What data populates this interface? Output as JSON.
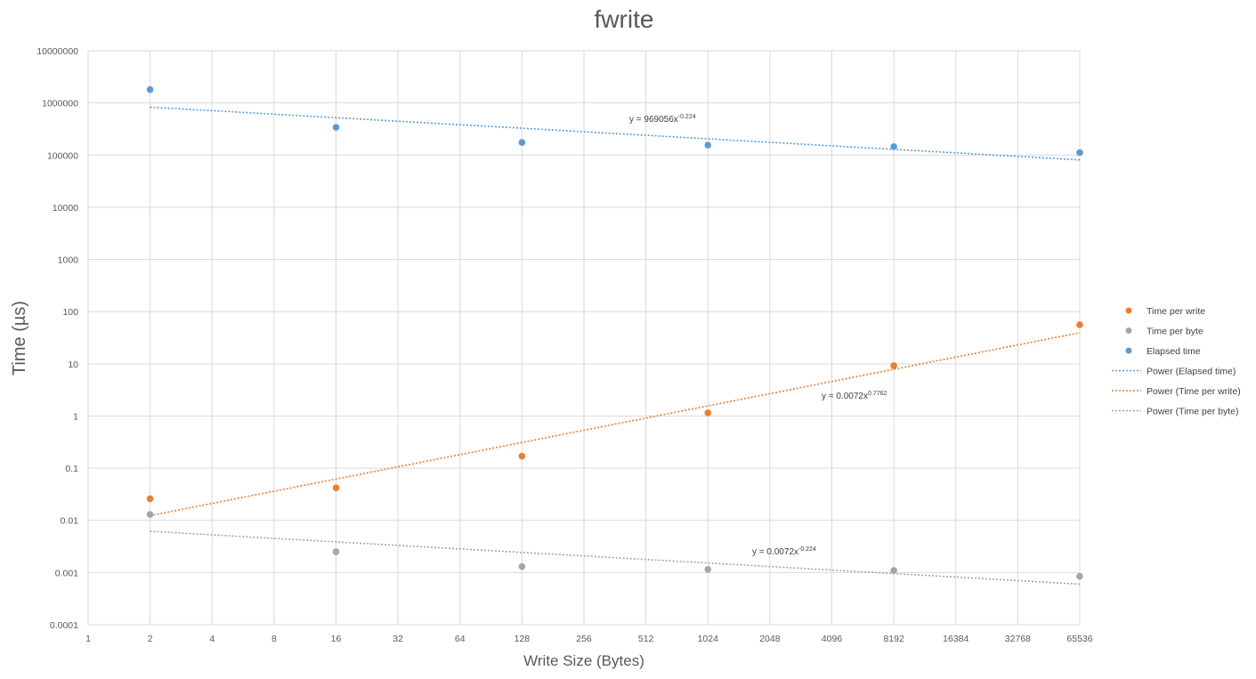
{
  "chart_data": {
    "type": "scatter",
    "title": "fwrite",
    "xlabel": "Write Size (Bytes)",
    "ylabel": "Time (µs)",
    "x_scale": "log2",
    "y_scale": "log10",
    "x_ticks": [
      "1",
      "2",
      "4",
      "8",
      "16",
      "32",
      "64",
      "128",
      "256",
      "512",
      "1024",
      "2048",
      "4096",
      "8192",
      "16384",
      "32768",
      "65536"
    ],
    "y_ticks": [
      "0.0001",
      "0.001",
      "0.01",
      "0.1",
      "1",
      "10",
      "100",
      "1000",
      "10000",
      "100000",
      "1000000",
      "10000000"
    ],
    "xlim": [
      1,
      65536
    ],
    "ylim": [
      0.0001,
      10000000
    ],
    "grid": true,
    "legend_position": "right",
    "series": [
      {
        "name": "Time per write",
        "color": "#ed7d31",
        "x": [
          2,
          16,
          128,
          1024,
          8192,
          65536
        ],
        "y": [
          0.026,
          0.042,
          0.17,
          1.15,
          9.2,
          56
        ]
      },
      {
        "name": "Time per byte",
        "color": "#a5a5a5",
        "x": [
          2,
          16,
          128,
          1024,
          8192,
          65536
        ],
        "y": [
          0.013,
          0.0025,
          0.0013,
          0.00115,
          0.0011,
          0.00085
        ]
      },
      {
        "name": "Elapsed time",
        "color": "#5b9bd5",
        "x": [
          2,
          16,
          128,
          1024,
          8192,
          65536
        ],
        "y": [
          1800000,
          340000,
          175000,
          155000,
          145000,
          112000
        ]
      }
    ],
    "trendlines": [
      {
        "name": "Power (Elapsed time)",
        "color": "#5b9bd5",
        "a": 969056,
        "b": -0.224,
        "equation_base": "y = 969056x",
        "equation_exp": "-0.224"
      },
      {
        "name": "Power (Time per write)",
        "color": "#ed7d31",
        "a": 0.0072,
        "b": 0.7762,
        "equation_base": "y = 0.0072x",
        "equation_exp": "0.7762"
      },
      {
        "name": "Power (Time per byte)",
        "color": "#a5a5a5",
        "a": 0.0072,
        "b": -0.224,
        "equation_base": "y = 0.0072x",
        "equation_exp": "-0.224"
      }
    ]
  }
}
